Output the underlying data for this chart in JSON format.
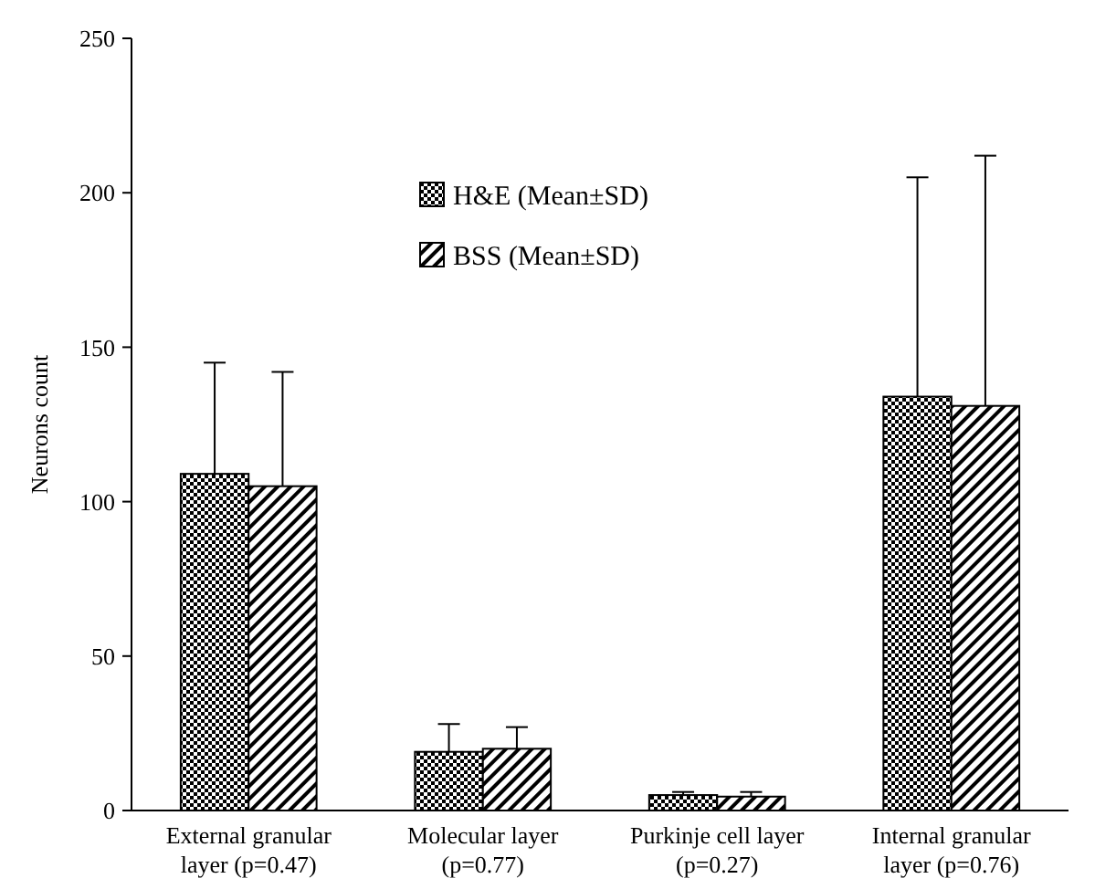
{
  "chart_data": {
    "type": "bar",
    "ylabel": "Neurons count",
    "categories": [
      "External granular layer (p=0.47)",
      "Molecular layer (p=0.77)",
      "Purkinje cell layer (p=0.27)",
      "Internal granular layer (p=0.76)"
    ],
    "series": [
      {
        "name": "H&E (Mean±SD)",
        "color": "#000000",
        "values": [
          109,
          19,
          5,
          134
        ],
        "errors": [
          [
            109,
            145
          ],
          [
            19,
            28
          ],
          [
            5,
            6
          ],
          [
            134,
            205
          ]
        ]
      },
      {
        "name": "BSS (Mean±SD)",
        "color": "#000000",
        "values": [
          105,
          20,
          4.5,
          131
        ],
        "errors": [
          [
            105,
            142
          ],
          [
            20,
            27
          ],
          [
            4.5,
            6
          ],
          [
            131,
            212
          ]
        ]
      }
    ],
    "ylim": [
      0,
      250
    ],
    "yticks": [
      0,
      50,
      100,
      150,
      200,
      250
    ],
    "grid": false,
    "legend": "top"
  }
}
